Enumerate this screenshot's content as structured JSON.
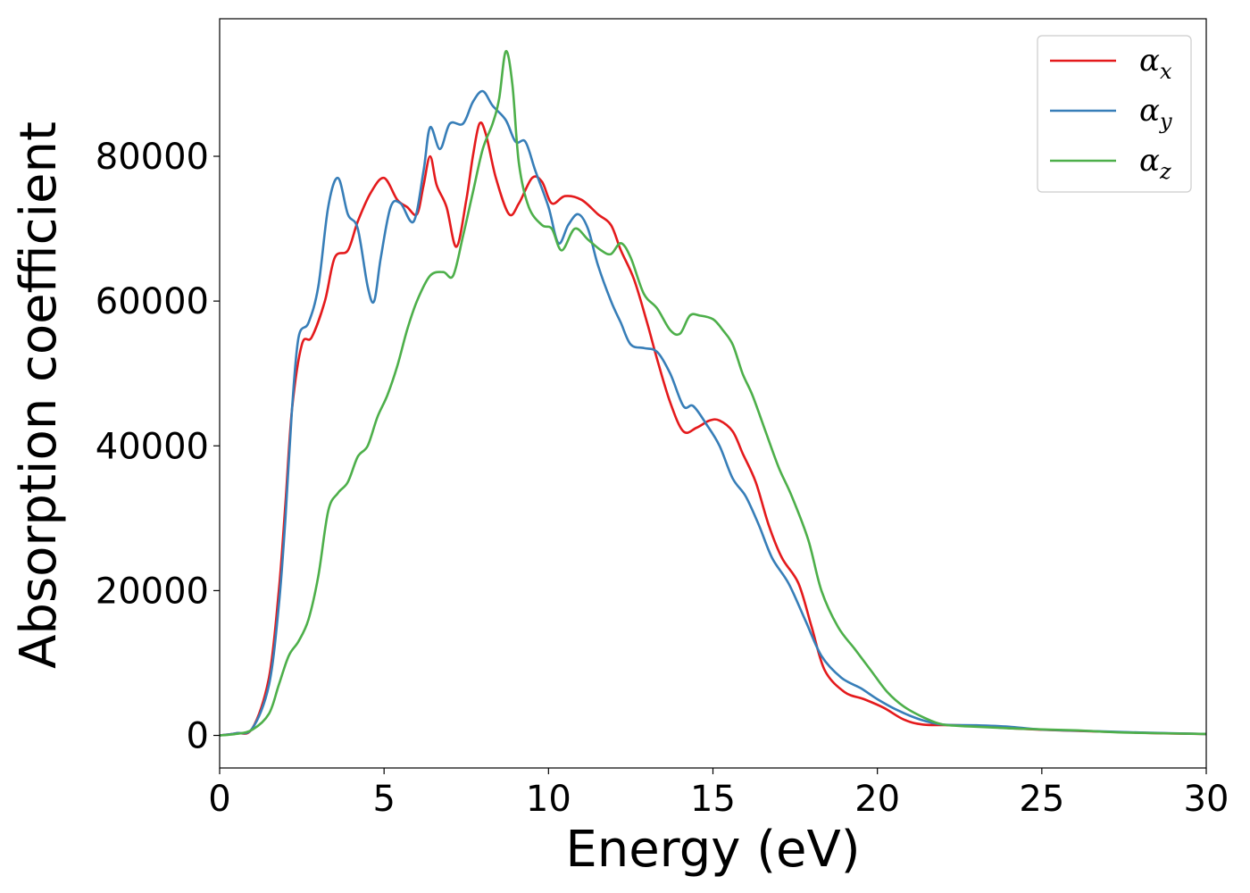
{
  "chart_data": {
    "type": "line",
    "title": "",
    "xlabel": "Energy (eV)",
    "ylabel": "Absorption coefficient",
    "xlim": [
      0,
      30
    ],
    "ylim": [
      -4500,
      99000
    ],
    "xticks": [
      0,
      5,
      10,
      15,
      20,
      25,
      30
    ],
    "yticks": [
      0,
      20000,
      40000,
      60000,
      80000
    ],
    "grid": false,
    "legend_position": "top-right",
    "series": [
      {
        "name": "αx",
        "legend_base": "α",
        "legend_sub": "x",
        "color": "#e41a1c",
        "points": [
          [
            0,
            0
          ],
          [
            0.5,
            300
          ],
          [
            1.0,
            1000
          ],
          [
            1.5,
            8000
          ],
          [
            1.8,
            20000
          ],
          [
            2.0,
            32000
          ],
          [
            2.2,
            45000
          ],
          [
            2.5,
            54000
          ],
          [
            2.8,
            55000
          ],
          [
            3.2,
            60000
          ],
          [
            3.5,
            66000
          ],
          [
            3.9,
            67000
          ],
          [
            4.2,
            71000
          ],
          [
            4.6,
            75000
          ],
          [
            5.0,
            77000
          ],
          [
            5.4,
            74000
          ],
          [
            5.7,
            73000
          ],
          [
            6.0,
            72000
          ],
          [
            6.2,
            76000
          ],
          [
            6.4,
            80000
          ],
          [
            6.6,
            76000
          ],
          [
            6.9,
            73000
          ],
          [
            7.2,
            67500
          ],
          [
            7.5,
            74000
          ],
          [
            7.7,
            80000
          ],
          [
            7.9,
            84500
          ],
          [
            8.1,
            83000
          ],
          [
            8.4,
            77000
          ],
          [
            8.8,
            72000
          ],
          [
            9.1,
            73500
          ],
          [
            9.5,
            77000
          ],
          [
            9.8,
            76500
          ],
          [
            10.1,
            73500
          ],
          [
            10.5,
            74500
          ],
          [
            11.0,
            74000
          ],
          [
            11.5,
            72000
          ],
          [
            11.9,
            70500
          ],
          [
            12.2,
            67000
          ],
          [
            12.6,
            63000
          ],
          [
            13.0,
            57000
          ],
          [
            13.3,
            52000
          ],
          [
            13.7,
            46000
          ],
          [
            14.1,
            42000
          ],
          [
            14.5,
            42500
          ],
          [
            14.9,
            43500
          ],
          [
            15.2,
            43500
          ],
          [
            15.6,
            42000
          ],
          [
            15.9,
            39000
          ],
          [
            16.3,
            35000
          ],
          [
            16.7,
            29000
          ],
          [
            17.1,
            24500
          ],
          [
            17.6,
            21000
          ],
          [
            18.0,
            15000
          ],
          [
            18.4,
            9000
          ],
          [
            19.0,
            6000
          ],
          [
            19.6,
            5000
          ],
          [
            20.2,
            3800
          ],
          [
            20.8,
            2200
          ],
          [
            21.4,
            1500
          ],
          [
            22.5,
            1400
          ],
          [
            24.0,
            1000
          ],
          [
            25.5,
            700
          ],
          [
            27.0,
            500
          ],
          [
            28.5,
            300
          ],
          [
            30,
            200
          ]
        ]
      },
      {
        "name": "αy",
        "legend_base": "α",
        "legend_sub": "y",
        "color": "#377eb8",
        "points": [
          [
            0,
            0
          ],
          [
            0.5,
            300
          ],
          [
            1.0,
            1000
          ],
          [
            1.5,
            7000
          ],
          [
            1.8,
            18000
          ],
          [
            2.0,
            30000
          ],
          [
            2.2,
            45000
          ],
          [
            2.4,
            55000
          ],
          [
            2.7,
            57000
          ],
          [
            3.0,
            62000
          ],
          [
            3.3,
            73000
          ],
          [
            3.6,
            77000
          ],
          [
            3.9,
            72000
          ],
          [
            4.2,
            70000
          ],
          [
            4.5,
            62000
          ],
          [
            4.7,
            60000
          ],
          [
            4.9,
            66000
          ],
          [
            5.2,
            73000
          ],
          [
            5.5,
            73500
          ],
          [
            5.9,
            71000
          ],
          [
            6.2,
            78000
          ],
          [
            6.4,
            84000
          ],
          [
            6.7,
            81000
          ],
          [
            7.0,
            84500
          ],
          [
            7.4,
            84500
          ],
          [
            7.7,
            87500
          ],
          [
            8.0,
            89000
          ],
          [
            8.3,
            87000
          ],
          [
            8.7,
            85000
          ],
          [
            9.0,
            82000
          ],
          [
            9.3,
            82000
          ],
          [
            9.6,
            78000
          ],
          [
            10.0,
            73000
          ],
          [
            10.3,
            68000
          ],
          [
            10.6,
            70500
          ],
          [
            10.9,
            72000
          ],
          [
            11.2,
            70000
          ],
          [
            11.5,
            65000
          ],
          [
            11.9,
            60000
          ],
          [
            12.2,
            57000
          ],
          [
            12.5,
            54000
          ],
          [
            12.9,
            53500
          ],
          [
            13.3,
            53000
          ],
          [
            13.7,
            50000
          ],
          [
            14.1,
            45500
          ],
          [
            14.4,
            45500
          ],
          [
            14.8,
            43000
          ],
          [
            15.2,
            40000
          ],
          [
            15.6,
            35500
          ],
          [
            16.0,
            33000
          ],
          [
            16.4,
            29000
          ],
          [
            16.8,
            24500
          ],
          [
            17.3,
            21000
          ],
          [
            17.8,
            16000
          ],
          [
            18.3,
            11000
          ],
          [
            18.9,
            8000
          ],
          [
            19.5,
            6500
          ],
          [
            20.0,
            5000
          ],
          [
            20.6,
            3500
          ],
          [
            21.3,
            2200
          ],
          [
            22.0,
            1500
          ],
          [
            23.0,
            1400
          ],
          [
            24.0,
            1200
          ],
          [
            25.0,
            800
          ],
          [
            26.5,
            600
          ],
          [
            28.0,
            400
          ],
          [
            30,
            200
          ]
        ]
      },
      {
        "name": "αz",
        "legend_base": "α",
        "legend_sub": "z",
        "color": "#4daf4a",
        "points": [
          [
            0,
            0
          ],
          [
            0.5,
            200
          ],
          [
            1.0,
            800
          ],
          [
            1.5,
            3000
          ],
          [
            1.8,
            7000
          ],
          [
            2.1,
            11000
          ],
          [
            2.4,
            13000
          ],
          [
            2.7,
            16000
          ],
          [
            3.0,
            22000
          ],
          [
            3.3,
            31000
          ],
          [
            3.6,
            33500
          ],
          [
            3.9,
            35000
          ],
          [
            4.2,
            38500
          ],
          [
            4.5,
            40000
          ],
          [
            4.8,
            44000
          ],
          [
            5.1,
            47000
          ],
          [
            5.4,
            51000
          ],
          [
            5.7,
            56000
          ],
          [
            6.0,
            60000
          ],
          [
            6.4,
            63500
          ],
          [
            6.8,
            64000
          ],
          [
            7.1,
            63500
          ],
          [
            7.4,
            69000
          ],
          [
            7.7,
            75000
          ],
          [
            8.0,
            81000
          ],
          [
            8.3,
            84500
          ],
          [
            8.5,
            88000
          ],
          [
            8.7,
            94500
          ],
          [
            8.9,
            90000
          ],
          [
            9.1,
            79000
          ],
          [
            9.4,
            73000
          ],
          [
            9.8,
            70500
          ],
          [
            10.1,
            70000
          ],
          [
            10.4,
            67000
          ],
          [
            10.8,
            70000
          ],
          [
            11.2,
            68500
          ],
          [
            11.6,
            67000
          ],
          [
            11.9,
            66500
          ],
          [
            12.2,
            68000
          ],
          [
            12.5,
            66000
          ],
          [
            12.9,
            61000
          ],
          [
            13.3,
            59000
          ],
          [
            13.7,
            56000
          ],
          [
            14.0,
            55500
          ],
          [
            14.3,
            58000
          ],
          [
            14.6,
            58000
          ],
          [
            15.0,
            57500
          ],
          [
            15.3,
            56000
          ],
          [
            15.6,
            54000
          ],
          [
            15.9,
            50000
          ],
          [
            16.2,
            47000
          ],
          [
            16.6,
            42000
          ],
          [
            17.0,
            37000
          ],
          [
            17.4,
            33000
          ],
          [
            17.9,
            27000
          ],
          [
            18.3,
            20000
          ],
          [
            18.8,
            15000
          ],
          [
            19.3,
            12000
          ],
          [
            19.8,
            9000
          ],
          [
            20.3,
            6000
          ],
          [
            20.8,
            4000
          ],
          [
            21.4,
            2500
          ],
          [
            22.0,
            1500
          ],
          [
            23.0,
            1200
          ],
          [
            24.5,
            900
          ],
          [
            26.0,
            700
          ],
          [
            27.5,
            400
          ],
          [
            30,
            200
          ]
        ]
      }
    ]
  }
}
